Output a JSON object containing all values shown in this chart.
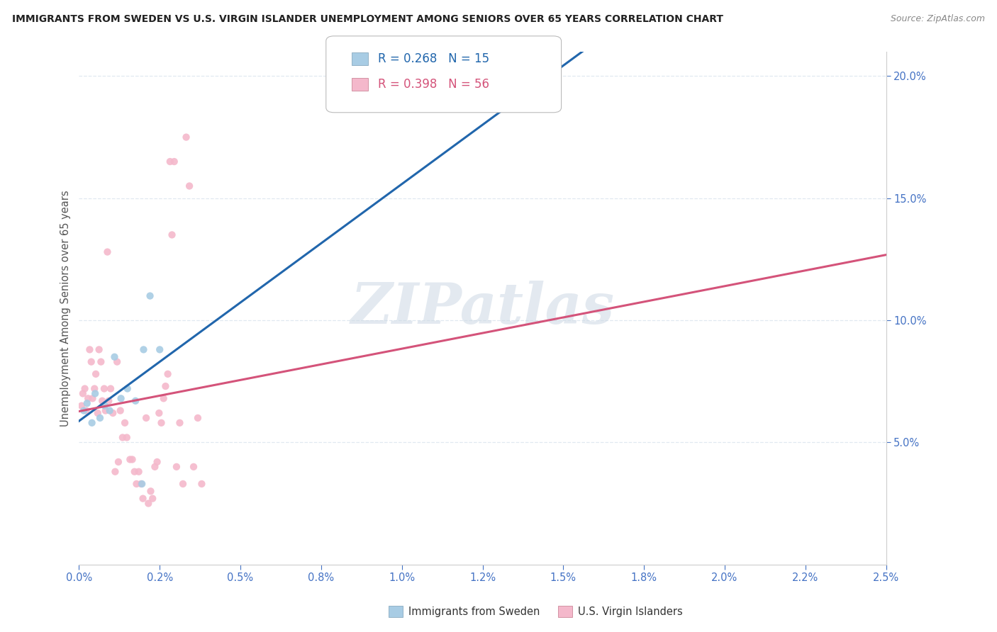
{
  "title": "IMMIGRANTS FROM SWEDEN VS U.S. VIRGIN ISLANDER UNEMPLOYMENT AMONG SENIORS OVER 65 YEARS CORRELATION CHART",
  "source": "Source: ZipAtlas.com",
  "ylabel": "Unemployment Among Seniors over 65 years",
  "legend1_r": "R = 0.268",
  "legend1_n": "N = 15",
  "legend2_r": "R = 0.398",
  "legend2_n": "N = 56",
  "blue_scatter_color": "#a8cce4",
  "pink_scatter_color": "#f4b8cb",
  "blue_line_color": "#2166ac",
  "pink_line_color": "#d4537a",
  "blue_legend_color": "#a8cce4",
  "pink_legend_color": "#f4b8cb",
  "grid_color": "#e0e8f0",
  "watermark_color": "#ccd8e4",
  "title_color": "#222222",
  "source_color": "#888888",
  "tick_color": "#4472c4",
  "ylabel_color": "#555555",
  "xlim": [
    0,
    0.025
  ],
  "ylim": [
    0,
    0.21
  ],
  "x_ticks": [
    0.0,
    0.0025,
    0.005,
    0.0075,
    0.01,
    0.0125,
    0.015,
    0.0175,
    0.02,
    0.0225,
    0.025
  ],
  "y_ticks_right": [
    0.05,
    0.1,
    0.15,
    0.2
  ],
  "sweden_x": [
    0.00015,
    0.00025,
    0.0004,
    0.0005,
    0.00065,
    0.0008,
    0.00095,
    0.0011,
    0.0013,
    0.0015,
    0.00175,
    0.00195,
    0.002,
    0.0022,
    0.0025
  ],
  "sweden_y": [
    0.063,
    0.066,
    0.058,
    0.07,
    0.06,
    0.065,
    0.063,
    0.085,
    0.068,
    0.072,
    0.067,
    0.033,
    0.088,
    0.11,
    0.088
  ],
  "virgin_x": [
    8e-05,
    0.00012,
    0.00018,
    0.00022,
    0.00028,
    0.00033,
    0.00038,
    0.00042,
    0.00048,
    0.00052,
    0.00058,
    0.00062,
    0.00068,
    0.00072,
    0.00078,
    0.00082,
    0.00088,
    0.00092,
    0.00098,
    0.00105,
    0.00112,
    0.00118,
    0.00122,
    0.00128,
    0.00135,
    0.00142,
    0.00148,
    0.00158,
    0.00165,
    0.00172,
    0.00178,
    0.00185,
    0.00192,
    0.00198,
    0.00208,
    0.00215,
    0.00222,
    0.00228,
    0.00235,
    0.00242,
    0.00248,
    0.00255,
    0.00262,
    0.00268,
    0.00275,
    0.00282,
    0.00288,
    0.00295,
    0.00302,
    0.00312,
    0.00322,
    0.00332,
    0.00342,
    0.00355,
    0.00368,
    0.0038
  ],
  "virgin_y": [
    0.065,
    0.07,
    0.072,
    0.063,
    0.068,
    0.088,
    0.083,
    0.068,
    0.072,
    0.078,
    0.062,
    0.088,
    0.083,
    0.067,
    0.072,
    0.063,
    0.128,
    0.067,
    0.072,
    0.062,
    0.038,
    0.083,
    0.042,
    0.063,
    0.052,
    0.058,
    0.052,
    0.043,
    0.043,
    0.038,
    0.033,
    0.038,
    0.033,
    0.027,
    0.06,
    0.025,
    0.03,
    0.027,
    0.04,
    0.042,
    0.062,
    0.058,
    0.068,
    0.073,
    0.078,
    0.165,
    0.135,
    0.165,
    0.04,
    0.058,
    0.033,
    0.175,
    0.155,
    0.04,
    0.06,
    0.033
  ]
}
